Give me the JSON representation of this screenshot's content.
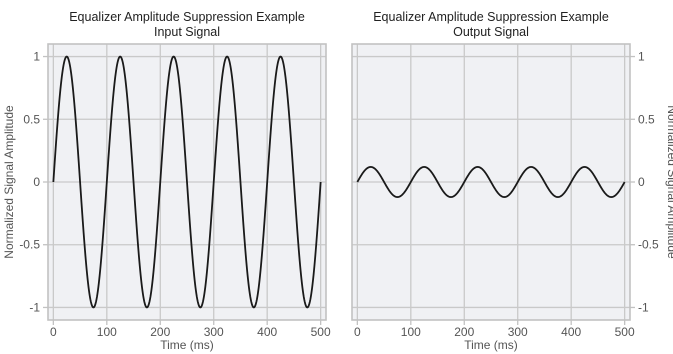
{
  "chart_data": [
    {
      "type": "line",
      "title": "Equalizer Amplitude Suppression Example",
      "subtitle": "Input Signal",
      "xlabel": "Time (ms)",
      "ylabel": "Normalized Signal Amplitude",
      "xlim": [
        -10,
        510
      ],
      "ylim": [
        -1.1,
        1.1
      ],
      "xticks": [
        0,
        100,
        200,
        300,
        400,
        500
      ],
      "yticks": [
        -1,
        -0.5,
        0,
        0.5,
        1
      ],
      "ytick_labels": [
        "-1",
        "-0.5",
        "0",
        "0.5",
        "1"
      ],
      "yaxis_side": "left",
      "grid": true,
      "series": [
        {
          "color": "#1a1a1a",
          "function": "amplitude * sin(2*pi*frequency_hz*t/1000)",
          "amplitude": 1.0,
          "frequency_hz": 10,
          "t_range_ms": [
            0,
            500
          ]
        }
      ]
    },
    {
      "type": "line",
      "title": "Equalizer Amplitude Suppression Example",
      "subtitle": "Output Signal",
      "xlabel": "Time (ms)",
      "ylabel": "Normalized Signal Amplitude",
      "xlim": [
        -10,
        510
      ],
      "ylim": [
        -1.1,
        1.1
      ],
      "xticks": [
        0,
        100,
        200,
        300,
        400,
        500
      ],
      "yticks": [
        -1,
        -0.5,
        0,
        0.5,
        1
      ],
      "ytick_labels": [
        "-1",
        "-0.5",
        "0",
        "0.5",
        "1"
      ],
      "yaxis_side": "right",
      "grid": true,
      "series": [
        {
          "color": "#1a1a1a",
          "function": "amplitude * sin(2*pi*frequency_hz*t/1000)",
          "amplitude": 0.12,
          "frequency_hz": 10,
          "t_range_ms": [
            0,
            500
          ]
        }
      ]
    }
  ],
  "colors": {
    "plot_background": "#f0f1f4",
    "grid": "#c9c9c9",
    "frame": "#c2c2c2",
    "line": "#1a1a1a",
    "text": "#555555",
    "title": "#222222"
  }
}
